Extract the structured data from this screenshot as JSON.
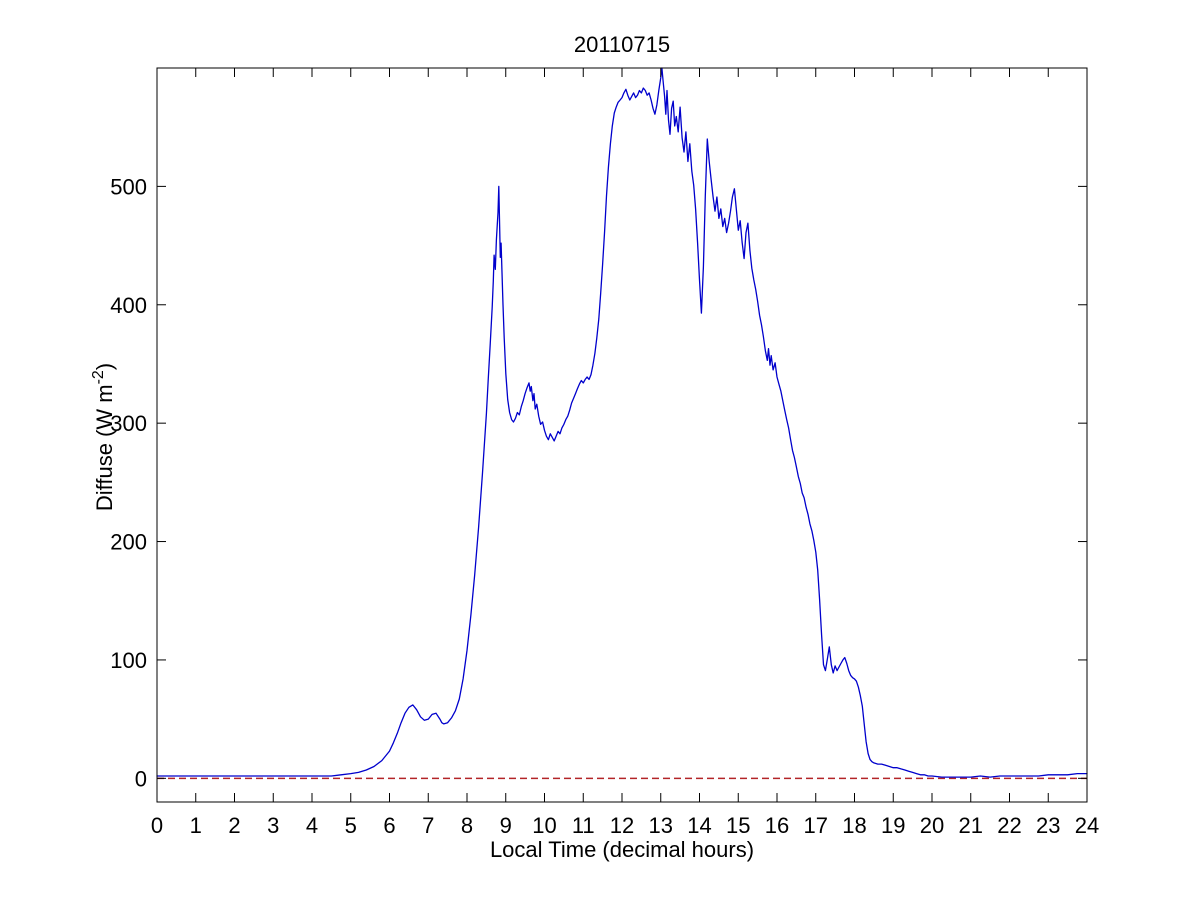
{
  "figure": {
    "background": "#ffffff",
    "title": "20110715",
    "xlabel": "Local Time (decimal hours)",
    "ylabel": {
      "pre": "Diffuse (W m",
      "sup": "-2",
      "post": ")"
    }
  },
  "chart_data": {
    "type": "line",
    "title": "20110715",
    "xlabel": "Local Time (decimal hours)",
    "ylabel": "Diffuse (W m^-2)",
    "xlim": [
      0,
      24
    ],
    "ylim": [
      -20,
      600
    ],
    "xticks": [
      0,
      1,
      2,
      3,
      4,
      5,
      6,
      7,
      8,
      9,
      10,
      11,
      12,
      13,
      14,
      15,
      16,
      17,
      18,
      19,
      20,
      21,
      22,
      23,
      24
    ],
    "yticks": [
      0,
      100,
      200,
      300,
      400,
      500
    ],
    "grid": false,
    "legend": "none",
    "axis_color": "#000000",
    "reference_lines": [
      {
        "name": "zero-line",
        "y": 0,
        "color": "#b32428",
        "style": "dashed"
      }
    ],
    "series": [
      {
        "name": "diffuse-irradiance",
        "color": "#0000cc",
        "style": "solid",
        "points": [
          [
            0,
            2
          ],
          [
            0.25,
            2
          ],
          [
            0.5,
            2
          ],
          [
            0.75,
            2
          ],
          [
            1,
            2
          ],
          [
            1.25,
            2
          ],
          [
            1.5,
            2
          ],
          [
            1.75,
            2
          ],
          [
            2,
            2
          ],
          [
            2.25,
            2
          ],
          [
            2.5,
            2
          ],
          [
            2.75,
            2
          ],
          [
            3,
            2
          ],
          [
            3.25,
            2
          ],
          [
            3.5,
            2
          ],
          [
            3.75,
            2
          ],
          [
            4,
            2
          ],
          [
            4.25,
            2
          ],
          [
            4.5,
            2
          ],
          [
            4.75,
            3
          ],
          [
            5,
            4
          ],
          [
            5.2,
            5
          ],
          [
            5.4,
            7
          ],
          [
            5.6,
            10
          ],
          [
            5.8,
            15
          ],
          [
            6,
            23
          ],
          [
            6.1,
            30
          ],
          [
            6.2,
            38
          ],
          [
            6.3,
            47
          ],
          [
            6.4,
            55
          ],
          [
            6.5,
            60
          ],
          [
            6.6,
            62
          ],
          [
            6.7,
            58
          ],
          [
            6.8,
            52
          ],
          [
            6.9,
            49
          ],
          [
            7,
            50
          ],
          [
            7.1,
            54
          ],
          [
            7.2,
            55
          ],
          [
            7.3,
            50
          ],
          [
            7.35,
            47
          ],
          [
            7.4,
            46
          ],
          [
            7.5,
            47
          ],
          [
            7.6,
            51
          ],
          [
            7.7,
            57
          ],
          [
            7.8,
            67
          ],
          [
            7.9,
            84
          ],
          [
            8,
            108
          ],
          [
            8.1,
            138
          ],
          [
            8.2,
            172
          ],
          [
            8.3,
            212
          ],
          [
            8.4,
            258
          ],
          [
            8.5,
            308
          ],
          [
            8.55,
            338
          ],
          [
            8.6,
            368
          ],
          [
            8.65,
            398
          ],
          [
            8.68,
            420
          ],
          [
            8.7,
            442
          ],
          [
            8.73,
            430
          ],
          [
            8.76,
            455
          ],
          [
            8.8,
            478
          ],
          [
            8.82,
            500
          ],
          [
            8.84,
            468
          ],
          [
            8.86,
            440
          ],
          [
            8.88,
            452
          ],
          [
            8.9,
            430
          ],
          [
            8.93,
            400
          ],
          [
            8.96,
            372
          ],
          [
            9,
            342
          ],
          [
            9.05,
            320
          ],
          [
            9.1,
            309
          ],
          [
            9.15,
            303
          ],
          [
            9.2,
            301
          ],
          [
            9.25,
            304
          ],
          [
            9.3,
            309
          ],
          [
            9.35,
            307
          ],
          [
            9.4,
            314
          ],
          [
            9.45,
            319
          ],
          [
            9.5,
            325
          ],
          [
            9.55,
            330
          ],
          [
            9.6,
            334
          ],
          [
            9.63,
            327
          ],
          [
            9.66,
            331
          ],
          [
            9.7,
            319
          ],
          [
            9.73,
            325
          ],
          [
            9.76,
            312
          ],
          [
            9.8,
            316
          ],
          [
            9.85,
            306
          ],
          [
            9.9,
            299
          ],
          [
            9.95,
            301
          ],
          [
            10,
            294
          ],
          [
            10.05,
            289
          ],
          [
            10.1,
            286
          ],
          [
            10.15,
            291
          ],
          [
            10.2,
            288
          ],
          [
            10.25,
            285
          ],
          [
            10.3,
            289
          ],
          [
            10.35,
            293
          ],
          [
            10.4,
            291
          ],
          [
            10.45,
            296
          ],
          [
            10.5,
            299
          ],
          [
            10.55,
            303
          ],
          [
            10.6,
            306
          ],
          [
            10.65,
            311
          ],
          [
            10.7,
            317
          ],
          [
            10.75,
            321
          ],
          [
            10.8,
            325
          ],
          [
            10.85,
            329
          ],
          [
            10.9,
            333
          ],
          [
            10.95,
            336
          ],
          [
            11,
            334
          ],
          [
            11.05,
            337
          ],
          [
            11.1,
            339
          ],
          [
            11.15,
            337
          ],
          [
            11.2,
            341
          ],
          [
            11.25,
            349
          ],
          [
            11.3,
            359
          ],
          [
            11.35,
            372
          ],
          [
            11.4,
            388
          ],
          [
            11.45,
            410
          ],
          [
            11.5,
            434
          ],
          [
            11.55,
            462
          ],
          [
            11.6,
            492
          ],
          [
            11.65,
            516
          ],
          [
            11.7,
            536
          ],
          [
            11.75,
            551
          ],
          [
            11.8,
            562
          ],
          [
            11.85,
            567
          ],
          [
            11.9,
            571
          ],
          [
            11.95,
            573
          ],
          [
            12,
            575
          ],
          [
            12.05,
            579
          ],
          [
            12.1,
            582
          ],
          [
            12.15,
            577
          ],
          [
            12.2,
            573
          ],
          [
            12.25,
            576
          ],
          [
            12.3,
            579
          ],
          [
            12.35,
            575
          ],
          [
            12.4,
            577
          ],
          [
            12.45,
            581
          ],
          [
            12.5,
            579
          ],
          [
            12.55,
            583
          ],
          [
            12.6,
            581
          ],
          [
            12.65,
            577
          ],
          [
            12.7,
            579
          ],
          [
            12.75,
            573
          ],
          [
            12.8,
            566
          ],
          [
            12.85,
            561
          ],
          [
            12.9,
            569
          ],
          [
            12.95,
            581
          ],
          [
            13,
            592
          ],
          [
            13.03,
            600
          ],
          [
            13.06,
            589
          ],
          [
            13.1,
            576
          ],
          [
            13.13,
            561
          ],
          [
            13.16,
            581
          ],
          [
            13.2,
            556
          ],
          [
            13.24,
            544
          ],
          [
            13.28,
            566
          ],
          [
            13.32,
            572
          ],
          [
            13.36,
            551
          ],
          [
            13.4,
            559
          ],
          [
            13.45,
            546
          ],
          [
            13.5,
            567
          ],
          [
            13.55,
            541
          ],
          [
            13.6,
            529
          ],
          [
            13.65,
            546
          ],
          [
            13.7,
            521
          ],
          [
            13.75,
            536
          ],
          [
            13.8,
            513
          ],
          [
            13.85,
            501
          ],
          [
            13.9,
            481
          ],
          [
            13.95,
            452
          ],
          [
            14,
            421
          ],
          [
            14.05,
            393
          ],
          [
            14.1,
            432
          ],
          [
            14.15,
            492
          ],
          [
            14.2,
            540
          ],
          [
            14.25,
            521
          ],
          [
            14.3,
            506
          ],
          [
            14.35,
            491
          ],
          [
            14.4,
            479
          ],
          [
            14.45,
            491
          ],
          [
            14.5,
            473
          ],
          [
            14.55,
            481
          ],
          [
            14.6,
            466
          ],
          [
            14.65,
            473
          ],
          [
            14.7,
            461
          ],
          [
            14.75,
            469
          ],
          [
            14.8,
            479
          ],
          [
            14.85,
            491
          ],
          [
            14.9,
            498
          ],
          [
            14.95,
            481
          ],
          [
            15,
            463
          ],
          [
            15.05,
            471
          ],
          [
            15.1,
            453
          ],
          [
            15.15,
            439
          ],
          [
            15.2,
            461
          ],
          [
            15.25,
            469
          ],
          [
            15.3,
            446
          ],
          [
            15.35,
            431
          ],
          [
            15.4,
            421
          ],
          [
            15.45,
            413
          ],
          [
            15.5,
            403
          ],
          [
            15.55,
            391
          ],
          [
            15.6,
            383
          ],
          [
            15.65,
            373
          ],
          [
            15.7,
            361
          ],
          [
            15.75,
            353
          ],
          [
            15.78,
            363
          ],
          [
            15.82,
            349
          ],
          [
            15.85,
            357
          ],
          [
            15.9,
            345
          ],
          [
            15.95,
            351
          ],
          [
            16,
            339
          ],
          [
            16.05,
            333
          ],
          [
            16.1,
            327
          ],
          [
            16.15,
            319
          ],
          [
            16.2,
            311
          ],
          [
            16.25,
            303
          ],
          [
            16.3,
            296
          ],
          [
            16.35,
            286
          ],
          [
            16.4,
            277
          ],
          [
            16.45,
            271
          ],
          [
            16.5,
            263
          ],
          [
            16.55,
            255
          ],
          [
            16.6,
            249
          ],
          [
            16.65,
            241
          ],
          [
            16.7,
            237
          ],
          [
            16.75,
            229
          ],
          [
            16.8,
            223
          ],
          [
            16.85,
            215
          ],
          [
            16.9,
            209
          ],
          [
            16.95,
            201
          ],
          [
            17,
            191
          ],
          [
            17.05,
            176
          ],
          [
            17.1,
            151
          ],
          [
            17.15,
            121
          ],
          [
            17.2,
            96
          ],
          [
            17.25,
            91
          ],
          [
            17.3,
            101
          ],
          [
            17.35,
            111
          ],
          [
            17.4,
            96
          ],
          [
            17.45,
            89
          ],
          [
            17.5,
            95
          ],
          [
            17.55,
            91
          ],
          [
            17.6,
            94
          ],
          [
            17.65,
            97
          ],
          [
            17.7,
            100
          ],
          [
            17.75,
            102
          ],
          [
            17.8,
            97
          ],
          [
            17.85,
            91
          ],
          [
            17.9,
            87
          ],
          [
            17.95,
            85
          ],
          [
            18,
            84
          ],
          [
            18.05,
            82
          ],
          [
            18.1,
            77
          ],
          [
            18.15,
            70
          ],
          [
            18.2,
            61
          ],
          [
            18.25,
            46
          ],
          [
            18.3,
            31
          ],
          [
            18.35,
            21
          ],
          [
            18.4,
            16
          ],
          [
            18.45,
            14
          ],
          [
            18.5,
            13
          ],
          [
            18.6,
            12
          ],
          [
            18.7,
            12
          ],
          [
            18.8,
            11
          ],
          [
            18.9,
            10
          ],
          [
            19,
            9
          ],
          [
            19.1,
            9
          ],
          [
            19.2,
            8
          ],
          [
            19.3,
            7
          ],
          [
            19.4,
            6
          ],
          [
            19.5,
            5
          ],
          [
            19.6,
            4
          ],
          [
            19.7,
            3
          ],
          [
            19.8,
            3
          ],
          [
            19.9,
            2
          ],
          [
            20,
            2
          ],
          [
            20.25,
            1
          ],
          [
            20.5,
            1
          ],
          [
            20.75,
            1
          ],
          [
            21,
            1
          ],
          [
            21.25,
            2
          ],
          [
            21.5,
            1
          ],
          [
            21.75,
            2
          ],
          [
            22,
            2
          ],
          [
            22.25,
            2
          ],
          [
            22.5,
            2
          ],
          [
            22.75,
            2
          ],
          [
            23,
            3
          ],
          [
            23.25,
            3
          ],
          [
            23.5,
            3
          ],
          [
            23.75,
            4
          ],
          [
            24,
            4
          ]
        ]
      }
    ]
  }
}
